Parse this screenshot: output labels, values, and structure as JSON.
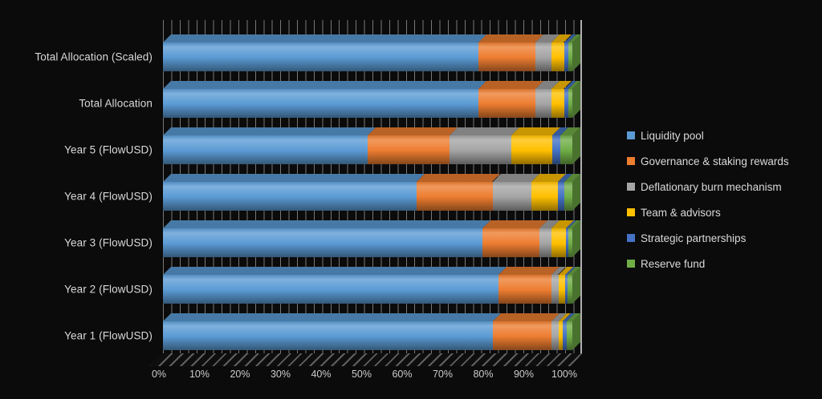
{
  "chart_data": {
    "type": "bar",
    "variant": "100%-stacked-horizontal-3d",
    "title": "",
    "xlabel": "",
    "ylabel": "",
    "xlim": [
      0,
      100
    ],
    "x_ticks": [
      "0%",
      "10%",
      "20%",
      "30%",
      "40%",
      "50%",
      "60%",
      "70%",
      "80%",
      "90%",
      "100%"
    ],
    "grid": "minor-vertical",
    "legend_position": "right",
    "background_color": "#0b0b0b",
    "text_color": "#d9d9d9",
    "categories_order": "top_to_bottom",
    "categories": [
      "Total Allocation (Scaled)",
      "Total Allocation",
      "Year 5 (FlowUSD)",
      "Year 4 (FlowUSD)",
      "Year 3 (FlowUSD)",
      "Year 2 (FlowUSD)",
      "Year 1 (FlowUSD)"
    ],
    "series": [
      {
        "name": "Liquidity pool",
        "color": "#5B9BD5",
        "values": [
          77,
          77,
          50,
          62,
          78,
          82,
          80.5
        ]
      },
      {
        "name": "Governance & staking rewards",
        "color": "#ED7D31",
        "values": [
          14,
          14,
          20,
          18.5,
          14,
          13,
          14.4
        ]
      },
      {
        "name": "Deflationary burn mechanism",
        "color": "#A5A5A5",
        "values": [
          4,
          4,
          15,
          9.5,
          3,
          1.6,
          1.8
        ]
      },
      {
        "name": "Team & advisors",
        "color": "#FFC000",
        "values": [
          3,
          3,
          10,
          6.5,
          3.5,
          1.7,
          0.9
        ]
      },
      {
        "name": "Strategic partnerships",
        "color": "#4472C4",
        "values": [
          1,
          1,
          2,
          1.5,
          0.5,
          0.6,
          1.0
        ]
      },
      {
        "name": "Reserve fund",
        "color": "#70AD47",
        "values": [
          1,
          1,
          3,
          2,
          1,
          1.1,
          1.4
        ]
      }
    ]
  }
}
